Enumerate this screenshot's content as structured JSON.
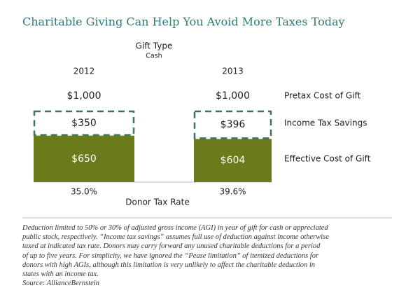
{
  "chart_data": {
    "type": "stacked-bar",
    "title": "Charitable Giving Can Help You Avoid More Taxes Today",
    "group_label": "Gift Type",
    "group": "Cash",
    "categories": [
      "2012",
      "2013"
    ],
    "series": [
      {
        "name": "Effective Cost of Gift",
        "color": "#6b7a1a",
        "style": "solid",
        "values": [
          650,
          604
        ],
        "value_labels": [
          "$650",
          "$604"
        ]
      },
      {
        "name": "Income Tax Savings",
        "color": "#3f6f72",
        "style": "dashed",
        "values": [
          350,
          396
        ],
        "value_labels": [
          "$350",
          "$396"
        ]
      }
    ],
    "totals": {
      "name": "Pretax Cost of Gift",
      "values": [
        1000,
        1000
      ],
      "value_labels": [
        "$1,000",
        "$1,000"
      ]
    },
    "rates": {
      "name": "Donor Tax Rate",
      "values": [
        35.0,
        39.6
      ],
      "value_labels": [
        "35.0%",
        "39.6%"
      ]
    },
    "notes": [
      "Deduction limited to 50% or 30% of adjusted gross income (AGI) in year of gift for cash or appreciated",
      "public stock, respectively. “Income tax savings” assumes full use of deduction against income otherwise",
      "taxed at indicated tax rate. Donors may carry forward any unused charitable deductions for a period",
      "of up to five years. For simplicity, we have ignored the “Pease limitation” of itemized deductions for",
      "donors with high AGIs, although this limitation is very unlikely to affect the charitable deduction in",
      "states with an income tax.",
      "Source: AllianceBernstein"
    ]
  }
}
